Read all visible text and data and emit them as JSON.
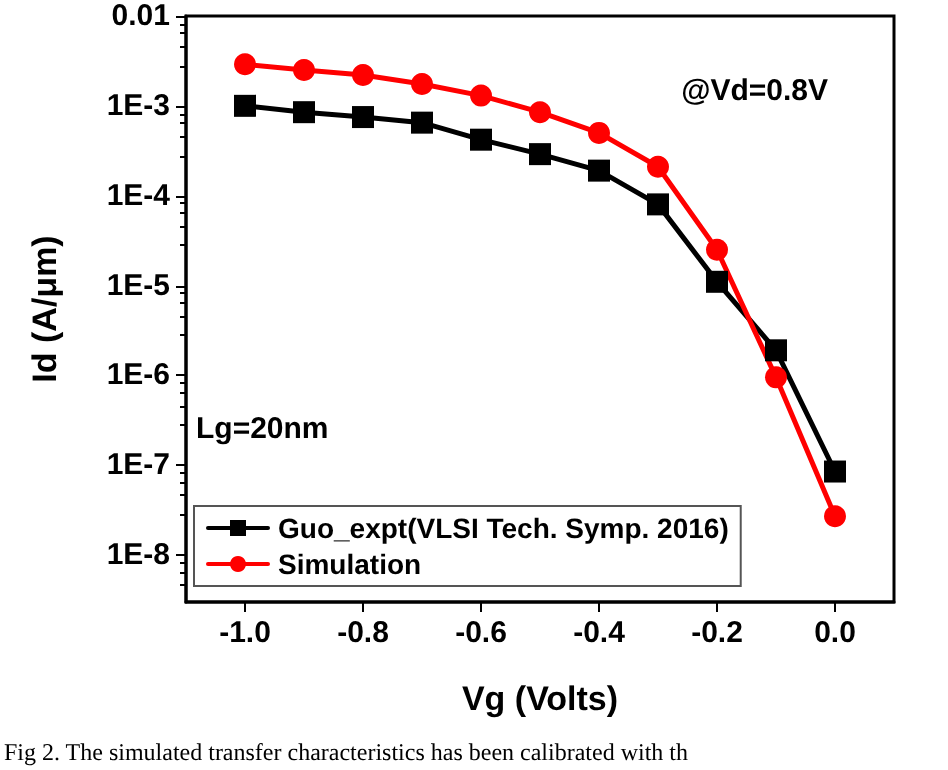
{
  "chart_data": {
    "type": "line",
    "xlabel": "Vg (Volts)",
    "ylabel": "Id (A/μm)",
    "log": "y",
    "x": [
      -1.0,
      -0.9,
      -0.8,
      -0.7,
      -0.6,
      -0.5,
      -0.4,
      -0.3,
      -0.2,
      -0.1,
      0.0
    ],
    "series": [
      {
        "name": "Guo_expt(VLSI Tech. Symp. 2016)",
        "color": "#000000",
        "marker": "square",
        "values": [
          0.001,
          0.00085,
          0.00075,
          0.00065,
          0.00042,
          0.00029,
          0.00019,
          8e-05,
          1.1e-05,
          1.9e-06,
          8.5e-08
        ]
      },
      {
        "name": "Simulation",
        "color": "#ff0000",
        "marker": "circle",
        "values": [
          0.0029,
          0.0025,
          0.0022,
          0.00175,
          0.0013,
          0.00085,
          0.0005,
          0.00021,
          2.5e-05,
          9.5e-07,
          2.7e-08
        ]
      }
    ],
    "xlim": [
      -1.1,
      0.1
    ],
    "xticks": [
      {
        "value": -1.0,
        "label": "-1.0"
      },
      {
        "value": -0.8,
        "label": "-0.8"
      },
      {
        "value": -0.6,
        "label": "-0.6"
      },
      {
        "value": -0.4,
        "label": "-0.4"
      },
      {
        "value": -0.2,
        "label": "-0.2"
      },
      {
        "value": 0.0,
        "label": "0.0"
      }
    ],
    "ylim": [
      3e-09,
      0.01
    ],
    "yticks": [
      {
        "value": 1e-08,
        "label": "1E-8"
      },
      {
        "value": 1e-07,
        "label": "1E-7"
      },
      {
        "value": 1e-06,
        "label": "1E-6"
      },
      {
        "value": 1e-05,
        "label": "1E-5"
      },
      {
        "value": 0.0001,
        "label": "1E-4"
      },
      {
        "value": 0.001,
        "label": "1E-3"
      },
      0.01
    ],
    "legend": "bottom left",
    "grid": false,
    "annotations": [
      "@Vd=0.8V",
      "Lg=20nm",
      "Fig 2. The simulated transfer characteristics has been calibrated with th"
    ]
  }
}
